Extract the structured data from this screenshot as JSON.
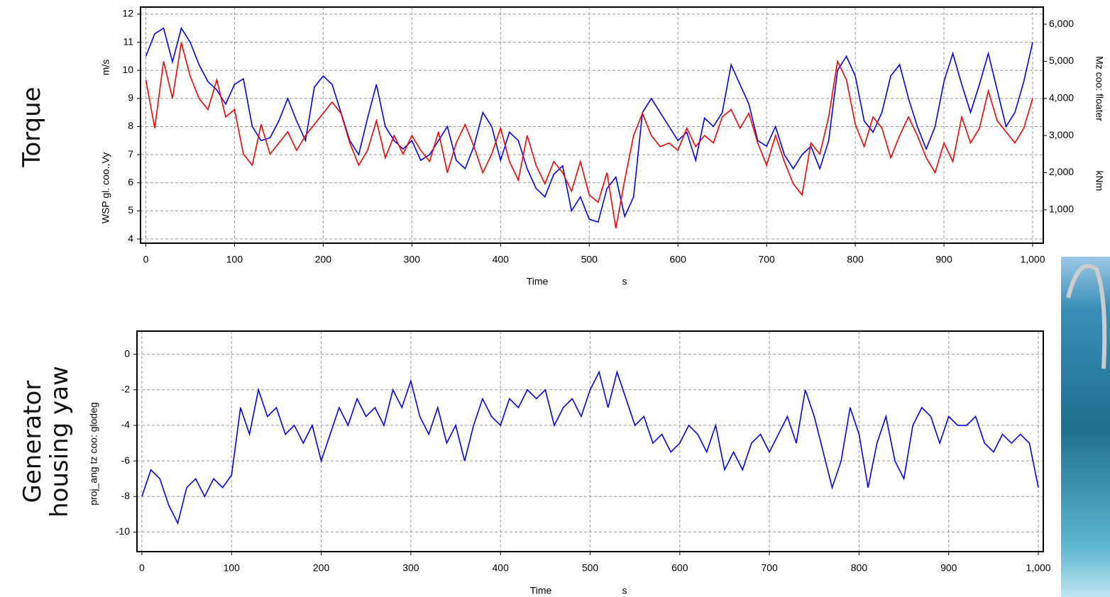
{
  "side_labels": [
    "Torque",
    "Generator housing yaw"
  ],
  "chart_data": [
    {
      "type": "line",
      "x_label": "Time",
      "x_unit": "s",
      "y_label": "WSP gl. coo.,Vy",
      "y_unit": "m/s",
      "y2_label": "Mz coo: floater",
      "y2_unit": "kNm",
      "xlim": [
        -6,
        1012
      ],
      "ylim": [
        3.85,
        12.25
      ],
      "y2lim": [
        100,
        6460
      ],
      "grid": true,
      "xticks": [
        0,
        100,
        200,
        300,
        400,
        500,
        600,
        700,
        800,
        900,
        {
          "value": 1000,
          "label": "1,000"
        }
      ],
      "yticks": [
        4,
        5,
        6,
        7,
        8,
        9,
        10,
        11,
        12
      ],
      "y2ticks": [
        {
          "value": 1000,
          "label": "1,000"
        },
        {
          "value": 2000,
          "label": "2,000"
        },
        {
          "value": 3000,
          "label": "3,000"
        },
        {
          "value": 4000,
          "label": "4,000"
        },
        {
          "value": 5000,
          "label": "5,000"
        },
        {
          "value": 6000,
          "label": "6,000"
        }
      ],
      "x": [
        0,
        10,
        20,
        30,
        40,
        50,
        60,
        70,
        80,
        90,
        100,
        110,
        120,
        130,
        140,
        150,
        160,
        170,
        180,
        190,
        200,
        210,
        220,
        230,
        240,
        250,
        260,
        270,
        280,
        290,
        300,
        310,
        320,
        330,
        340,
        350,
        360,
        370,
        380,
        390,
        400,
        410,
        420,
        430,
        440,
        450,
        460,
        470,
        480,
        490,
        500,
        510,
        520,
        530,
        540,
        550,
        560,
        570,
        580,
        590,
        600,
        610,
        620,
        630,
        640,
        650,
        660,
        670,
        680,
        690,
        700,
        710,
        720,
        730,
        740,
        750,
        760,
        770,
        780,
        790,
        800,
        810,
        820,
        830,
        840,
        850,
        860,
        870,
        880,
        890,
        900,
        910,
        920,
        930,
        940,
        950,
        960,
        970,
        980,
        990,
        1000
      ],
      "series": [
        {
          "name": "WSP gl. coo.,Vy",
          "color": "#0000ff",
          "values": [
            10.5,
            11.3,
            11.5,
            10.3,
            11.5,
            11.0,
            10.2,
            9.6,
            9.3,
            8.8,
            9.5,
            9.7,
            8.0,
            7.5,
            7.6,
            8.2,
            9.0,
            8.2,
            7.5,
            9.4,
            9.8,
            9.5,
            8.5,
            7.5,
            7.0,
            8.3,
            9.5,
            8.0,
            7.5,
            7.2,
            7.5,
            6.8,
            7.0,
            7.5,
            8.0,
            6.8,
            6.5,
            7.3,
            8.5,
            8.0,
            6.8,
            7.8,
            7.5,
            6.5,
            5.8,
            5.5,
            6.3,
            6.6,
            5.0,
            5.5,
            4.7,
            4.6,
            5.8,
            6.2,
            4.8,
            5.5,
            8.5,
            9.0,
            8.5,
            8.0,
            7.5,
            7.8,
            6.8,
            8.3,
            8.0,
            8.5,
            10.2,
            9.5,
            8.8,
            7.5,
            7.3,
            8.0,
            7.0,
            6.5,
            7.0,
            7.3,
            6.5,
            7.5,
            10.0,
            10.5,
            9.8,
            8.2,
            7.8,
            8.5,
            9.8,
            10.2,
            9.0,
            8.0,
            7.2,
            8.0,
            9.6,
            10.6,
            9.5,
            8.5,
            9.5,
            10.6,
            9.3,
            8.0,
            8.5,
            9.6,
            11.0
          ]
        },
        {
          "name": "Mz coo: floater",
          "color": "#ff0000",
          "axis": "y2",
          "values": [
            4500,
            3200,
            5000,
            4000,
            5500,
            4600,
            4000,
            3700,
            4500,
            3500,
            3700,
            2500,
            2200,
            3300,
            2500,
            2800,
            3100,
            2600,
            3000,
            3300,
            3600,
            3900,
            3600,
            2800,
            2200,
            2600,
            3400,
            2400,
            3000,
            2500,
            3000,
            2600,
            2300,
            3100,
            2000,
            2800,
            3300,
            2700,
            2000,
            2500,
            3200,
            2300,
            1800,
            3000,
            2200,
            1700,
            2300,
            2000,
            1500,
            2300,
            1400,
            1200,
            2000,
            500,
            1800,
            3000,
            3600,
            3000,
            2700,
            2800,
            2600,
            3200,
            2700,
            3000,
            2800,
            3500,
            3700,
            3200,
            3600,
            2800,
            2200,
            3000,
            2300,
            1700,
            1400,
            2800,
            2500,
            3500,
            5000,
            4500,
            3300,
            2700,
            3500,
            3200,
            2400,
            3000,
            3500,
            3000,
            2400,
            2000,
            2800,
            2300,
            3500,
            2800,
            3200,
            4200,
            3400,
            3100,
            2800,
            3200,
            4000
          ]
        }
      ]
    },
    {
      "type": "line",
      "x_label": "Time",
      "x_unit": "s",
      "y_label": "proj_ang tz coo: glodeg",
      "xlim": [
        -5.5,
        1005.5
      ],
      "ylim": [
        -11.1,
        1.3
      ],
      "grid": true,
      "xticks": [
        0,
        100,
        200,
        300,
        400,
        500,
        600,
        700,
        800,
        900,
        {
          "value": 1000,
          "label": "1,000"
        }
      ],
      "yticks": [
        -10,
        -8,
        -6,
        -4,
        -2,
        0
      ],
      "x": [
        0,
        10,
        20,
        30,
        40,
        50,
        60,
        70,
        80,
        90,
        100,
        110,
        120,
        130,
        140,
        150,
        160,
        170,
        180,
        190,
        200,
        210,
        220,
        230,
        240,
        250,
        260,
        270,
        280,
        290,
        300,
        310,
        320,
        330,
        340,
        350,
        360,
        370,
        380,
        390,
        400,
        410,
        420,
        430,
        440,
        450,
        460,
        470,
        480,
        490,
        500,
        510,
        520,
        530,
        540,
        550,
        560,
        570,
        580,
        590,
        600,
        610,
        620,
        630,
        640,
        650,
        660,
        670,
        680,
        690,
        700,
        710,
        720,
        730,
        740,
        750,
        760,
        770,
        780,
        790,
        800,
        810,
        820,
        830,
        840,
        850,
        860,
        870,
        880,
        890,
        900,
        910,
        920,
        930,
        940,
        950,
        960,
        970,
        980,
        990,
        1000
      ],
      "series": [
        {
          "name": "proj_ang tz coo: glodeg",
          "color": "#0000ff",
          "values": [
            -8,
            -6.5,
            -7,
            -8.5,
            -9.5,
            -7.5,
            -7,
            -8,
            -7,
            -7.5,
            -6.8,
            -3,
            -4.5,
            -2,
            -3.5,
            -3,
            -4.5,
            -4,
            -5,
            -4,
            -6,
            -4.5,
            -3,
            -4,
            -2.5,
            -3.5,
            -3,
            -4,
            -2,
            -3,
            -1.5,
            -3.5,
            -4.5,
            -3,
            -5,
            -4,
            -6,
            -4,
            -2.5,
            -3.5,
            -4,
            -2.5,
            -3,
            -2,
            -2.5,
            -2,
            -4,
            -3,
            -2.5,
            -3.5,
            -2,
            -1,
            -3,
            -1,
            -2.5,
            -4,
            -3.5,
            -5,
            -4.5,
            -5.5,
            -5,
            -4,
            -4.5,
            -5.5,
            -4,
            -6.5,
            -5.5,
            -6.5,
            -5,
            -4.5,
            -5.5,
            -4.5,
            -3.5,
            -5,
            -2,
            -3.5,
            -5.5,
            -7.5,
            -6,
            -3,
            -4.5,
            -7.5,
            -5,
            -3.5,
            -6,
            -7,
            -4,
            -3,
            -3.5,
            -5,
            -3.5,
            -4,
            -4,
            -3.5,
            -5,
            -5.5,
            -4.5,
            -5,
            -4.5,
            -5,
            -7.5
          ]
        }
      ]
    }
  ]
}
